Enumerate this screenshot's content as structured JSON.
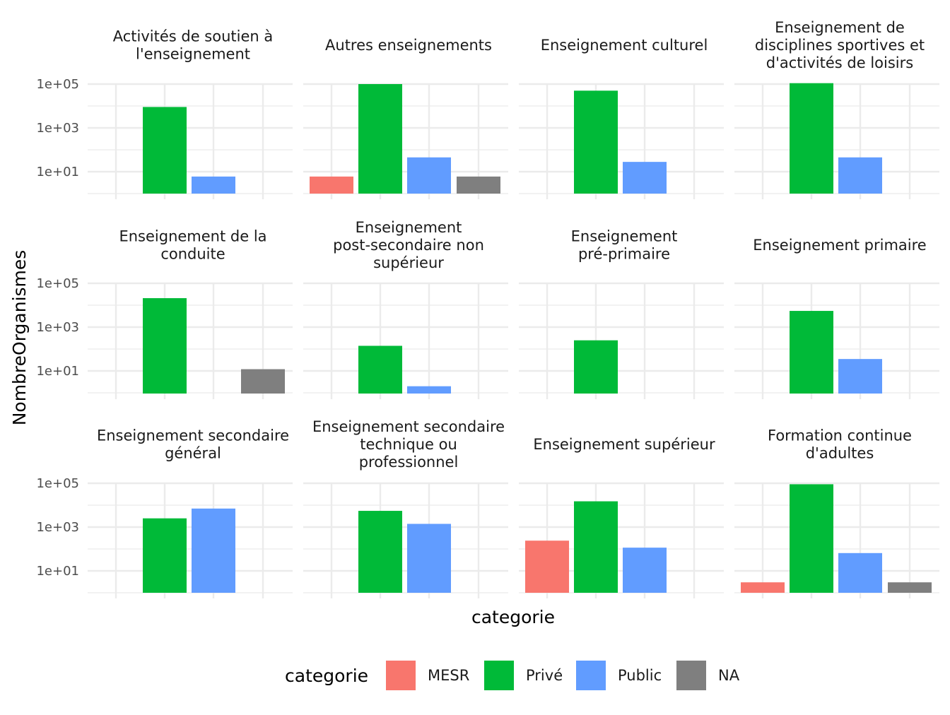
{
  "chart_data": {
    "type": "bar",
    "facet_wrap": true,
    "x_label": "categorie",
    "y_label": "NombreOrganismes",
    "y_scale": "log10",
    "y_ticks": [
      "1e+01",
      "1e+03",
      "1e+05"
    ],
    "y_tick_values": [
      10,
      1000,
      100000
    ],
    "grid": true,
    "categories": [
      "MESR",
      "Privé",
      "Public",
      "NA"
    ],
    "colors": {
      "MESR": "#F8766D",
      "Privé": "#00BA38",
      "Public": "#619CFF",
      "NA": "#7F7F7F"
    },
    "legend": {
      "title": "categorie",
      "position": "bottom",
      "items": [
        "MESR",
        "Privé",
        "Public",
        "NA"
      ]
    },
    "facets": [
      {
        "title": [
          "Activités de soutien à",
          "l'enseignement"
        ],
        "values": {
          "MESR": null,
          "Privé": 9000,
          "Public": 6,
          "NA": null
        }
      },
      {
        "title": [
          "Autres enseignements"
        ],
        "values": {
          "MESR": 6,
          "Privé": 100000,
          "Public": 45,
          "NA": 6
        }
      },
      {
        "title": [
          "Enseignement culturel"
        ],
        "values": {
          "MESR": null,
          "Privé": 50000,
          "Public": 28,
          "NA": null
        }
      },
      {
        "title": [
          "Enseignement de",
          "disciplines sportives et",
          "d'activités de loisirs"
        ],
        "values": {
          "MESR": null,
          "Privé": 110000,
          "Public": 45,
          "NA": null
        }
      },
      {
        "title": [
          "Enseignement de la",
          "conduite"
        ],
        "values": {
          "MESR": null,
          "Privé": 21000,
          "Public": null,
          "NA": 12
        }
      },
      {
        "title": [
          "Enseignement",
          "post-secondaire non",
          "supérieur"
        ],
        "values": {
          "MESR": null,
          "Privé": 140,
          "Public": 2,
          "NA": null
        }
      },
      {
        "title": [
          "Enseignement",
          "pré-primaire"
        ],
        "values": {
          "MESR": null,
          "Privé": 250,
          "Public": null,
          "NA": null
        }
      },
      {
        "title": [
          "Enseignement primaire"
        ],
        "values": {
          "MESR": null,
          "Privé": 5500,
          "Public": 35,
          "NA": null
        }
      },
      {
        "title": [
          "Enseignement secondaire",
          "général"
        ],
        "values": {
          "MESR": null,
          "Privé": 2500,
          "Public": 7000,
          "NA": null
        }
      },
      {
        "title": [
          "Enseignement secondaire",
          "technique ou",
          "professionnel"
        ],
        "values": {
          "MESR": null,
          "Privé": 5500,
          "Public": 1400,
          "NA": null
        }
      },
      {
        "title": [
          "Enseignement supérieur"
        ],
        "values": {
          "MESR": 240,
          "Privé": 15000,
          "Public": 115,
          "NA": null
        }
      },
      {
        "title": [
          "Formation continue",
          "d'adultes"
        ],
        "values": {
          "MESR": 3,
          "Privé": 90000,
          "Public": 65,
          "NA": 3
        }
      }
    ]
  }
}
